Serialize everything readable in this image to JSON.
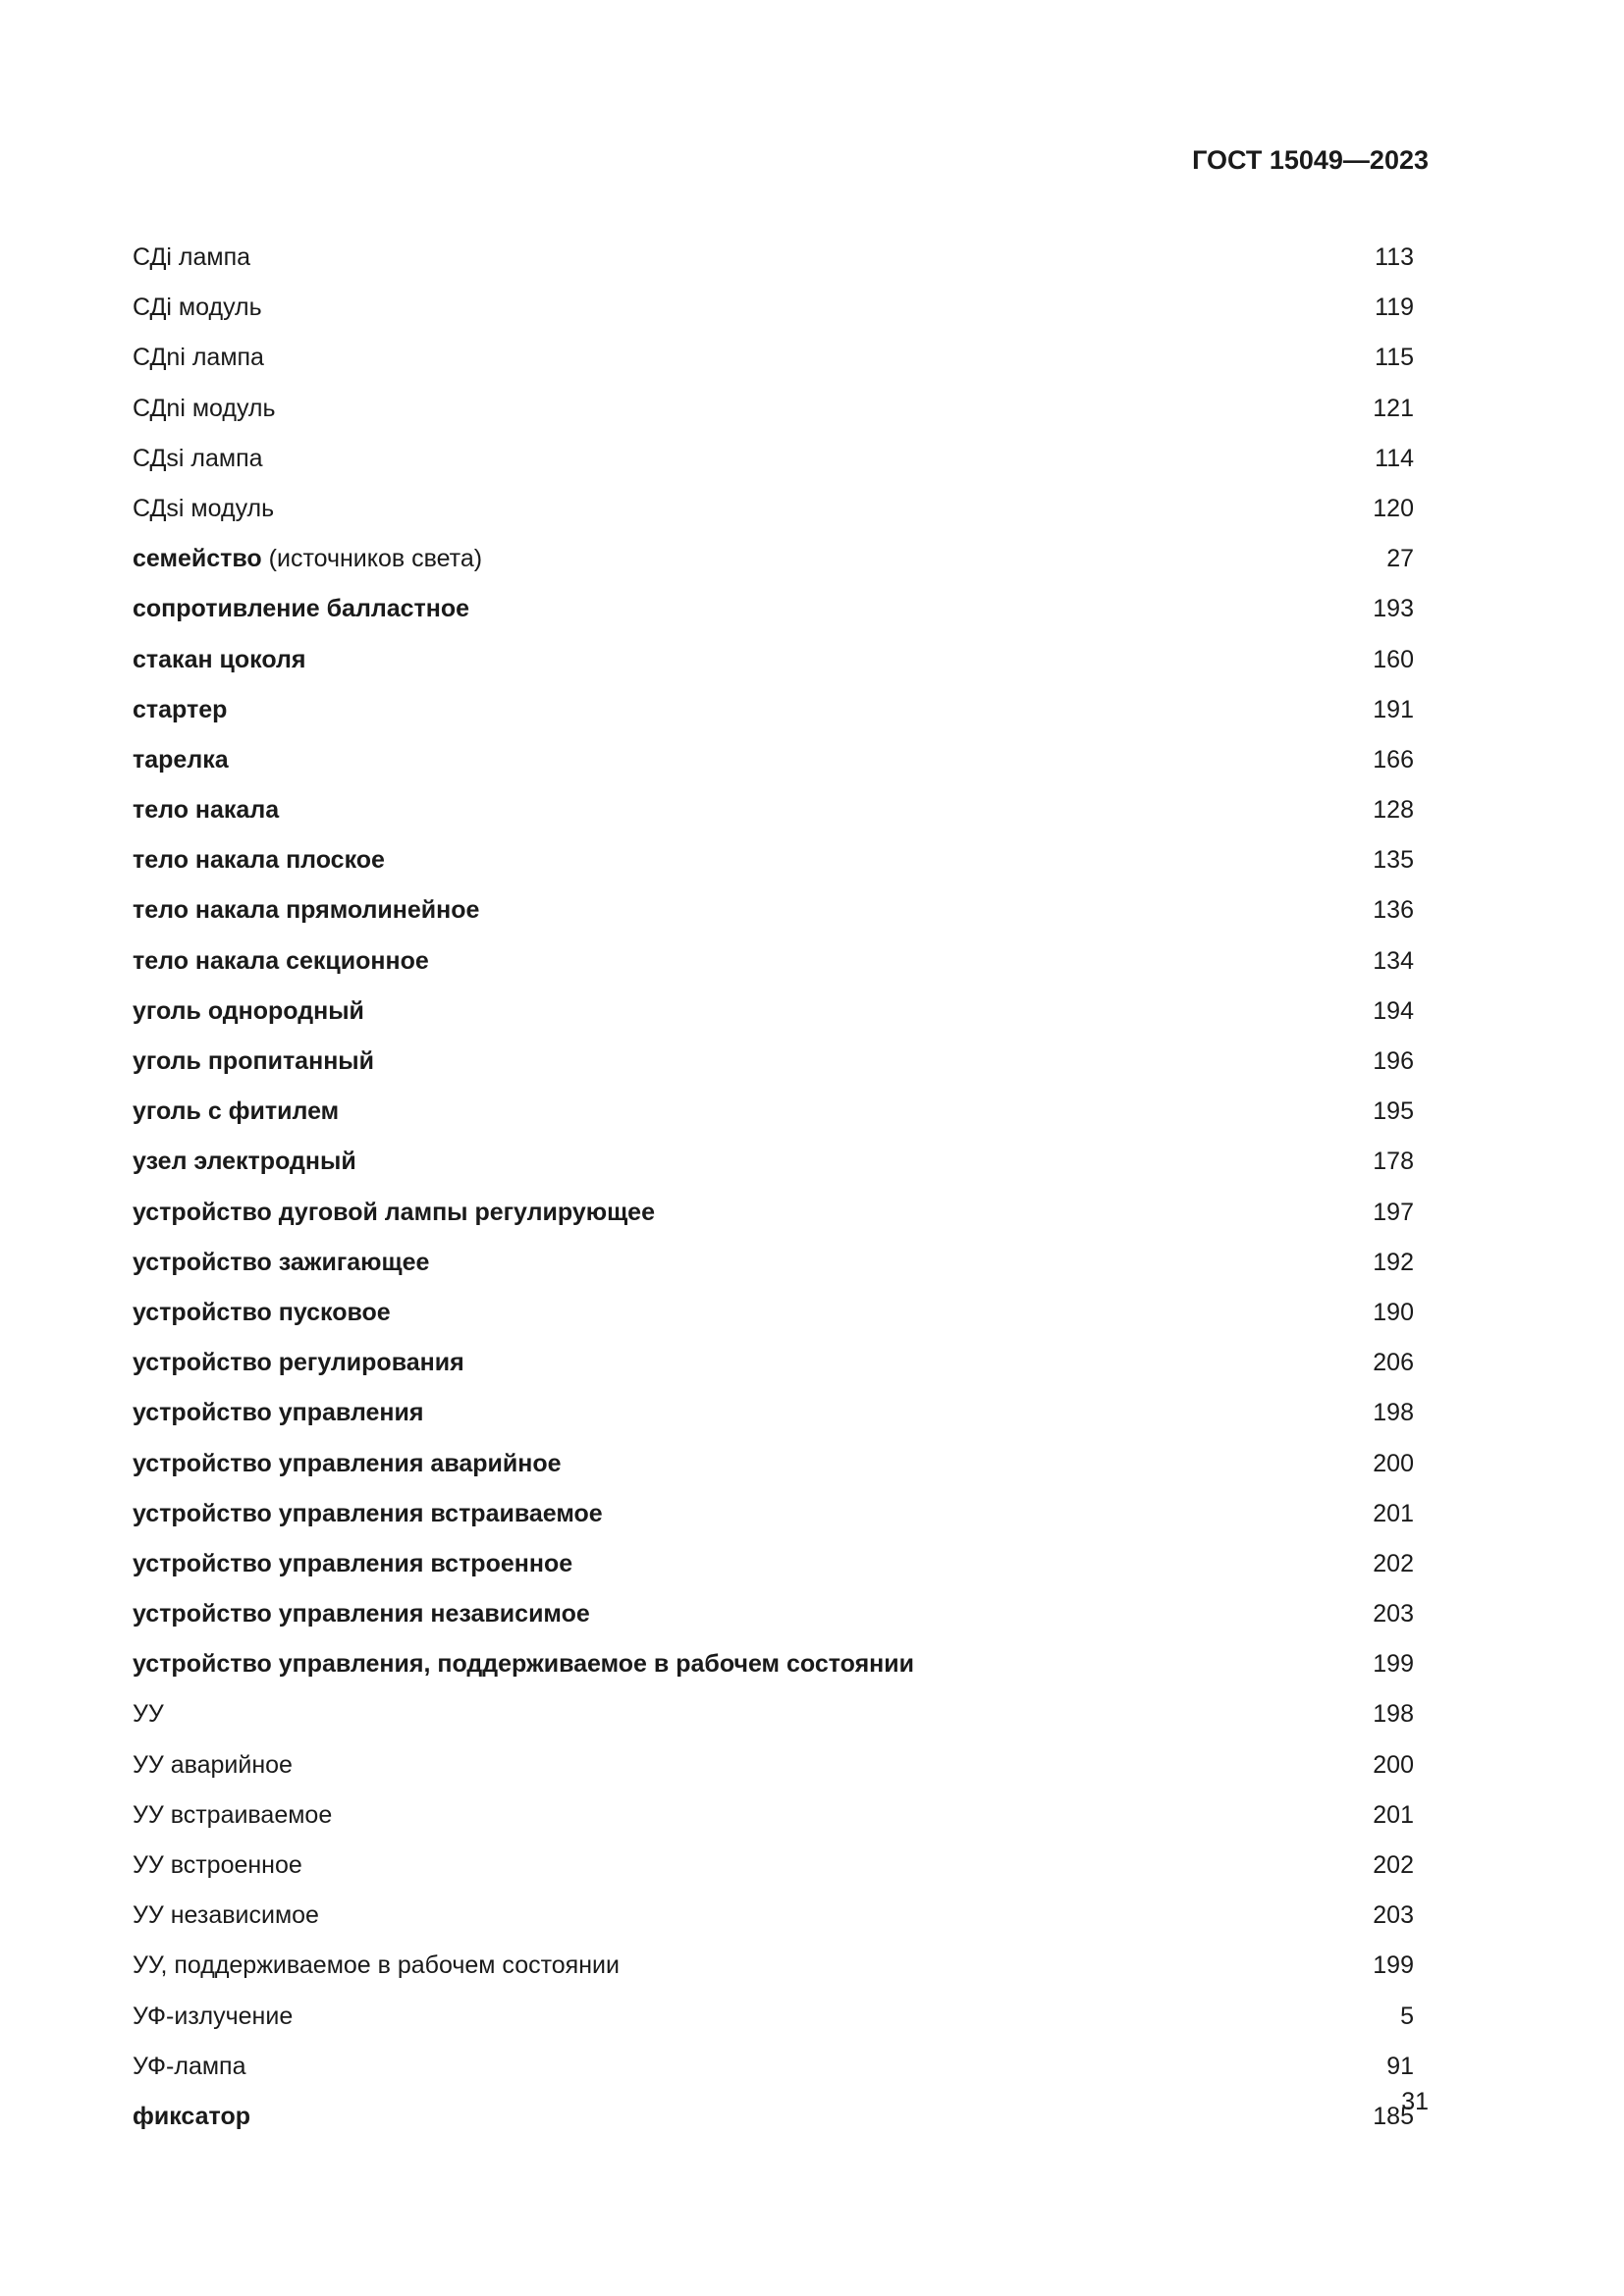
{
  "header": {
    "title": "ГОСТ 15049—2023"
  },
  "entries": [
    {
      "bold": "",
      "normal": "СДi лампа",
      "page": "113"
    },
    {
      "bold": "",
      "normal": "СДi модуль",
      "page": "119"
    },
    {
      "bold": "",
      "normal": "СДni лампа",
      "page": "115"
    },
    {
      "bold": "",
      "normal": "СДni модуль",
      "page": "121"
    },
    {
      "bold": "",
      "normal": "СДsi лампа",
      "page": "114"
    },
    {
      "bold": "",
      "normal": "СДsi модуль",
      "page": "120"
    },
    {
      "bold": "семейство",
      "normal": " (источников света)",
      "page": "27"
    },
    {
      "bold": "сопротивление балластное",
      "normal": "",
      "page": "193"
    },
    {
      "bold": "стакан цоколя",
      "normal": "",
      "page": "160"
    },
    {
      "bold": "стартер",
      "normal": "",
      "page": "191"
    },
    {
      "bold": "тарелка",
      "normal": "",
      "page": "166"
    },
    {
      "bold": "тело накала",
      "normal": "",
      "page": "128"
    },
    {
      "bold": "тело накала плоское",
      "normal": "",
      "page": "135"
    },
    {
      "bold": "тело накала прямолинейное",
      "normal": "",
      "page": "136"
    },
    {
      "bold": "тело накала секционное",
      "normal": "",
      "page": "134"
    },
    {
      "bold": "уголь однородный",
      "normal": "",
      "page": "194"
    },
    {
      "bold": "уголь пропитанный",
      "normal": "",
      "page": "196"
    },
    {
      "bold": "уголь с фитилем",
      "normal": "",
      "page": "195"
    },
    {
      "bold": "узел электродный",
      "normal": "",
      "page": "178"
    },
    {
      "bold": "устройство дуговой лампы регулирующее",
      "normal": "",
      "page": "197"
    },
    {
      "bold": "устройство зажигающее",
      "normal": "",
      "page": "192"
    },
    {
      "bold": "устройство пусковое",
      "normal": "",
      "page": "190"
    },
    {
      "bold": "устройство регулирования",
      "normal": "",
      "page": "206"
    },
    {
      "bold": "устройство управления",
      "normal": "",
      "page": "198"
    },
    {
      "bold": "устройство управления аварийное",
      "normal": "",
      "page": "200"
    },
    {
      "bold": "устройство управления встраиваемое",
      "normal": "",
      "page": "201"
    },
    {
      "bold": "устройство управления встроенное",
      "normal": "",
      "page": "202"
    },
    {
      "bold": "устройство управления независимое",
      "normal": "",
      "page": "203"
    },
    {
      "bold": "устройство управления, поддерживаемое в рабочем состоянии",
      "normal": "",
      "page": "199"
    },
    {
      "bold": "",
      "normal": "УУ",
      "page": "198"
    },
    {
      "bold": "",
      "normal": "УУ аварийное",
      "page": "200"
    },
    {
      "bold": "",
      "normal": "УУ встраиваемое",
      "page": "201"
    },
    {
      "bold": "",
      "normal": "УУ встроенное",
      "page": "202"
    },
    {
      "bold": "",
      "normal": "УУ независимое",
      "page": "203"
    },
    {
      "bold": "",
      "normal": "УУ, поддерживаемое в рабочем состоянии",
      "page": "199"
    },
    {
      "bold": "",
      "normal": "УФ-излучение",
      "page": "5"
    },
    {
      "bold": "",
      "normal": "УФ-лампа",
      "page": "91"
    },
    {
      "bold": "фиксатор",
      "normal": "",
      "page": "185"
    }
  ],
  "footer": {
    "page_number": "31"
  }
}
